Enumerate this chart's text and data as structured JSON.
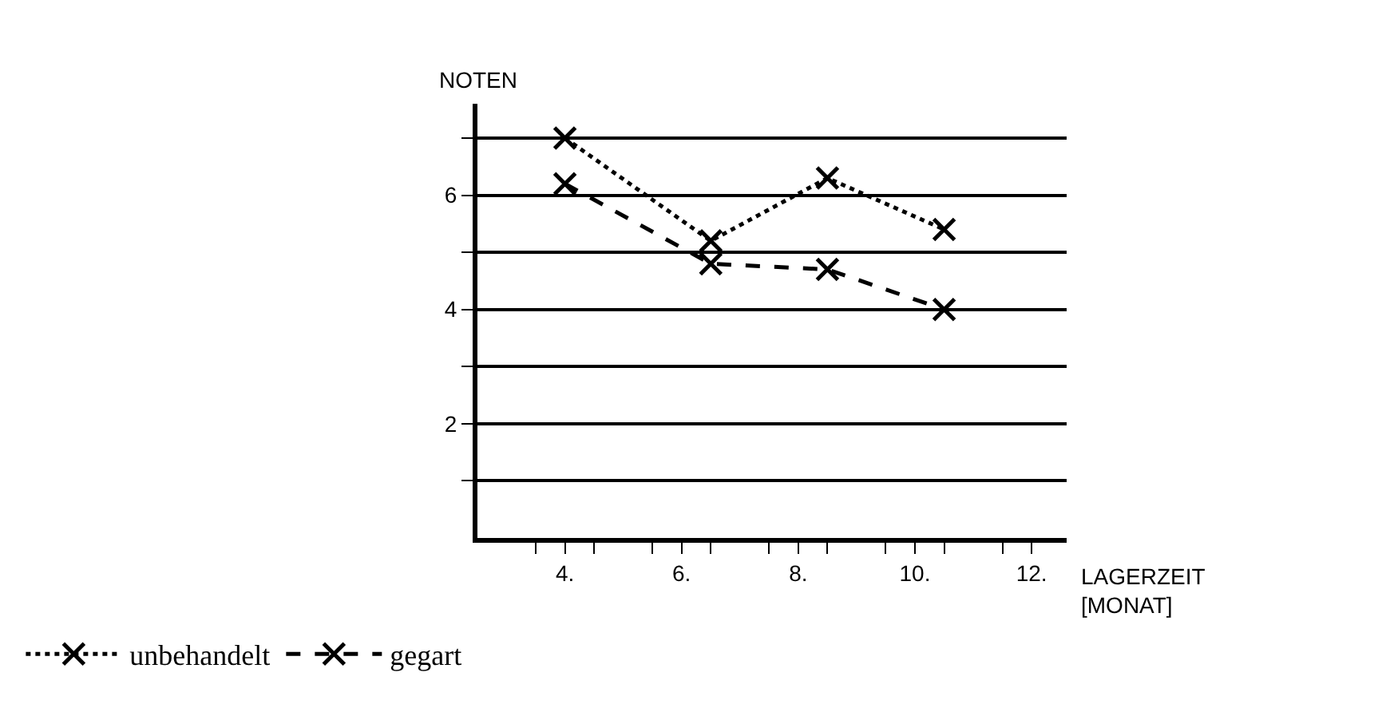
{
  "chart_data": {
    "type": "line",
    "xlabel": "LAGERZEIT\n[MONAT]",
    "ylabel": "NOTEN",
    "x": [
      4,
      6.5,
      8.5,
      10.5
    ],
    "series": [
      {
        "name": "unbehandelt",
        "color": "#000000",
        "line_style": "dotted",
        "values": [
          7.0,
          5.2,
          6.3,
          5.4
        ]
      },
      {
        "name": "gegart",
        "color": "#000000",
        "line_style": "dashed",
        "values": [
          6.2,
          4.8,
          4.7,
          4.0
        ]
      }
    ],
    "marker": "cross",
    "xlim": [
      2.5,
      12.6
    ],
    "xticks": [
      {
        "value": 3.5,
        "label": null
      },
      {
        "value": 4,
        "label": "4."
      },
      {
        "value": 4.5,
        "label": null
      },
      {
        "value": 5.5,
        "label": null
      },
      {
        "value": 6,
        "label": "6."
      },
      {
        "value": 6.5,
        "label": null
      },
      {
        "value": 7.5,
        "label": null
      },
      {
        "value": 8,
        "label": "8."
      },
      {
        "value": 8.5,
        "label": null
      },
      {
        "value": 9.5,
        "label": null
      },
      {
        "value": 10,
        "label": "10."
      },
      {
        "value": 10.5,
        "label": null
      },
      {
        "value": 11.5,
        "label": null
      },
      {
        "value": 12,
        "label": "12."
      }
    ],
    "ylim": [
      0,
      7.6
    ],
    "yticks": [
      {
        "value": 1,
        "label": null
      },
      2,
      {
        "value": 3,
        "label": null
      },
      4,
      {
        "value": 5,
        "label": null
      },
      6,
      {
        "value": 7,
        "label": null
      }
    ],
    "grid": "y",
    "legend": "bottom"
  }
}
